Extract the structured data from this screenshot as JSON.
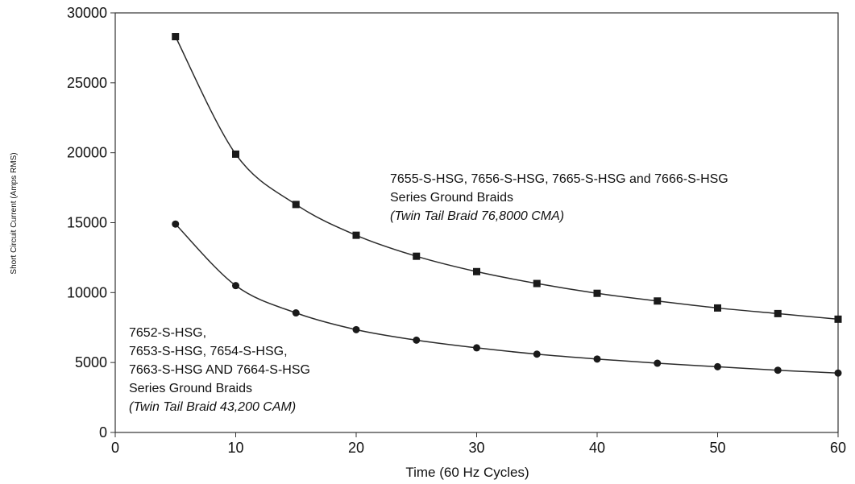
{
  "chart_data": {
    "type": "line",
    "xlabel": "Time (60 Hz Cycles)",
    "ylabel": "Short Circuit Current (Amps RMS)",
    "xlim": [
      0,
      60
    ],
    "ylim": [
      0,
      30000
    ],
    "x_ticks": [
      "0",
      "10",
      "20",
      "30",
      "40",
      "50",
      "60"
    ],
    "y_ticks": [
      "0",
      "5000",
      "10000",
      "15000",
      "20000",
      "25000",
      "30000"
    ],
    "grid": false,
    "x": [
      5,
      10,
      15,
      20,
      25,
      30,
      35,
      40,
      45,
      50,
      55,
      60
    ],
    "series": [
      {
        "marker": "square",
        "color": "#2b2b2b",
        "values": [
          28300,
          19900,
          16300,
          14100,
          12600,
          11500,
          10650,
          9950,
          9400,
          8900,
          8500,
          8100
        ]
      },
      {
        "marker": "circle",
        "color": "#2b2b2b",
        "values": [
          14900,
          10500,
          8550,
          7350,
          6600,
          6050,
          5600,
          5250,
          4950,
          4700,
          4450,
          4250
        ]
      }
    ]
  },
  "annotations": {
    "upper": {
      "line1": "7655-S-HSG, 7656-S-HSG, 7665-S-HSG and 7666-S-HSG",
      "line2": "Series Ground Braids",
      "line3": "(Twin Tail Braid 76,8000 CMA)"
    },
    "lower": {
      "line1": "7652-S-HSG,",
      "line2": "7653-S-HSG, 7654-S-HSG,",
      "line3": "7663-S-HSG AND 7664-S-HSG",
      "line4": "Series Ground Braids",
      "line5": "(Twin Tail Braid 43,200 CAM)"
    }
  }
}
